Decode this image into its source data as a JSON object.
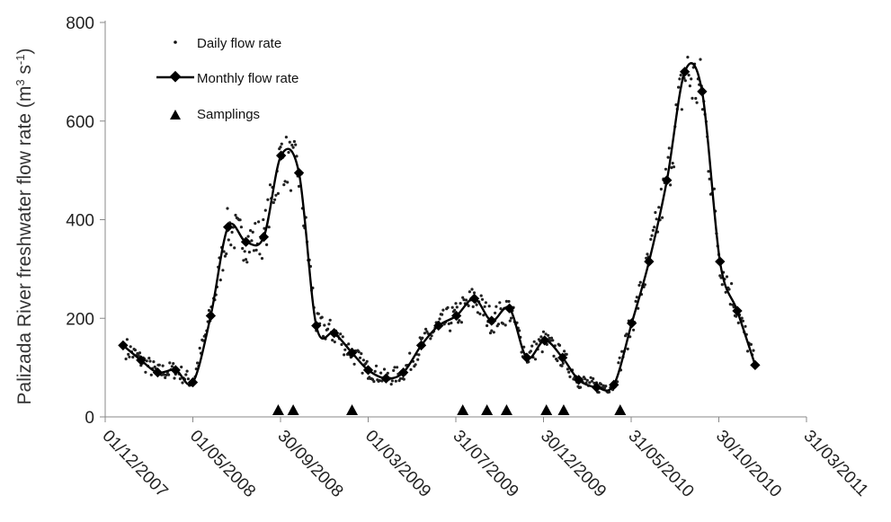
{
  "chart_data": {
    "type": "line",
    "ylabel": "Palizada River freshwater flow rate (m",
    "ylabel_sup1": "3",
    "ylabel_mid": " s",
    "ylabel_sup2": "-1",
    "ylabel_end": ")",
    "ylim": [
      0,
      800
    ],
    "yticks": [
      0,
      200,
      400,
      600,
      800
    ],
    "xlim": [
      "2007-12-01",
      "2011-03-31"
    ],
    "xticks": [
      "01/12/2007",
      "01/05/2008",
      "30/09/2008",
      "01/03/2009",
      "31/07/2009",
      "30/12/2009",
      "31/05/2010",
      "30/10/2010",
      "31/03/2011"
    ],
    "legend_position": "top-left",
    "legend": {
      "daily": "Daily flow rate",
      "monthly": "Monthly flow rate",
      "samplings": "Samplings"
    },
    "series": [
      {
        "name": "Monthly flow rate",
        "marker": "diamond",
        "x": [
          "2008-01-01",
          "2008-02-01",
          "2008-03-01",
          "2008-04-01",
          "2008-05-01",
          "2008-06-01",
          "2008-07-01",
          "2008-08-01",
          "2008-09-01",
          "2008-10-01",
          "2008-11-01",
          "2008-12-01",
          "2009-01-01",
          "2009-02-01",
          "2009-03-01",
          "2009-04-01",
          "2009-05-01",
          "2009-06-01",
          "2009-07-01",
          "2009-08-01",
          "2009-09-01",
          "2009-10-01",
          "2009-11-01",
          "2009-12-01",
          "2010-01-01",
          "2010-02-01",
          "2010-03-01",
          "2010-04-01",
          "2010-05-01",
          "2010-06-01",
          "2010-07-01",
          "2010-08-01",
          "2010-09-01",
          "2010-10-01",
          "2010-11-01",
          "2010-12-01",
          "2011-01-01"
        ],
        "values": [
          145,
          115,
          90,
          95,
          70,
          205,
          385,
          355,
          365,
          530,
          495,
          185,
          170,
          130,
          95,
          78,
          90,
          145,
          185,
          205,
          240,
          195,
          220,
          120,
          155,
          120,
          75,
          60,
          65,
          190,
          315,
          480,
          700,
          660,
          315,
          215,
          105
        ]
      },
      {
        "name": "Daily flow rate",
        "marker": "dot",
        "values_note": "daily points scattered around monthly curve"
      },
      {
        "name": "Samplings",
        "marker": "triangle",
        "x": [
          "2008-09-26",
          "2008-10-22",
          "2009-02-01",
          "2009-08-12",
          "2009-09-23",
          "2009-10-27",
          "2010-01-04",
          "2010-02-03",
          "2010-05-12"
        ],
        "values": [
          0,
          0,
          0,
          0,
          0,
          0,
          0,
          0,
          0
        ]
      }
    ]
  }
}
